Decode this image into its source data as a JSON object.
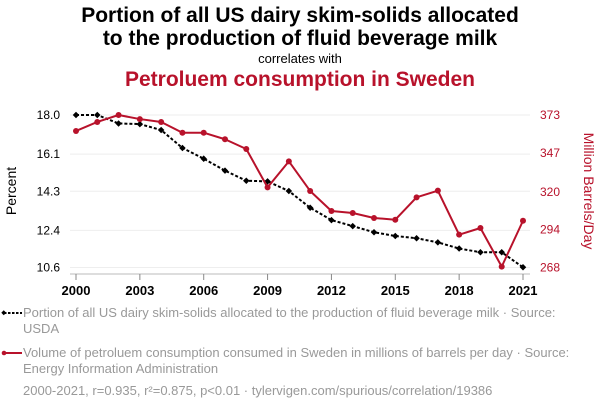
{
  "header": {
    "title_line1": "Portion of all US dairy skim-solids allocated",
    "title_line2": "to the production of fluid beverage milk",
    "correlates": "correlates with",
    "subtitle": "Petroluem consumption in Sweden"
  },
  "legend": {
    "series1": "Portion of all US dairy skim-solids allocated to the production of fluid beverage milk · Source: USDA",
    "series2": "Volume of petroluem consumption consumed in Sweden in millions of barrels per day · Source: Energy Information Administration"
  },
  "footer": "2000-2021, r=0.935, r²=0.875, p<0.01 · tylervigen.com/spurious/correlation/19386",
  "colors": {
    "series1": "#000000",
    "series2": "#b8122b",
    "grid": "#eeeeee"
  },
  "chart_data": {
    "type": "line",
    "title": "Portion of all US dairy skim-solids allocated to the production of fluid beverage milk correlates with Petroluem consumption in Sweden",
    "x": [
      2000,
      2001,
      2002,
      2003,
      2004,
      2005,
      2006,
      2007,
      2008,
      2009,
      2010,
      2011,
      2012,
      2013,
      2014,
      2015,
      2016,
      2017,
      2018,
      2019,
      2020,
      2021
    ],
    "xlabel": "",
    "x_ticks": [
      2000,
      2003,
      2006,
      2009,
      2012,
      2015,
      2018,
      2021
    ],
    "x_tick_labels": [
      "2000",
      "2003",
      "2006",
      "2009",
      "2012",
      "2015",
      "2018",
      "2021"
    ],
    "xlim": [
      2000,
      2021
    ],
    "grid": true,
    "legend_position": "bottom",
    "axes": {
      "left": {
        "label": "Percent",
        "ylim": [
          10.6,
          18.0
        ],
        "ticks": [
          18.0,
          16.1,
          14.3,
          12.4,
          10.6
        ],
        "tick_labels": [
          "18.0",
          "16.1",
          "14.3",
          "12.4",
          "10.6"
        ]
      },
      "right": {
        "label": "Million Barrels/Day",
        "ylim": [
          268,
          373
        ],
        "ticks": [
          373,
          347,
          320,
          294,
          268
        ],
        "tick_labels": [
          "373",
          "347",
          "320",
          "294",
          "268"
        ]
      }
    },
    "series": [
      {
        "name": "Portion of all US dairy skim-solids allocated to the production of fluid beverage milk",
        "axis": "left",
        "style": "dashed",
        "marker": "diamond",
        "values": [
          18.0,
          18.0,
          17.59,
          17.56,
          17.27,
          16.4,
          15.88,
          15.3,
          14.81,
          14.78,
          14.31,
          13.5,
          12.9,
          12.61,
          12.31,
          12.13,
          12.02,
          11.82,
          11.52,
          11.34,
          11.34,
          10.61
        ]
      },
      {
        "name": "Volume of petroluem consumption consumed in Sweden in millions of barrels per day",
        "axis": "right",
        "style": "solid",
        "marker": "circle",
        "values": [
          362.0,
          368.2,
          373.0,
          370.2,
          368.2,
          360.8,
          360.8,
          356.3,
          349.6,
          323.2,
          341.1,
          320.7,
          306.9,
          305.5,
          302.1,
          300.9,
          316.3,
          320.9,
          290.6,
          295.2,
          268.6,
          300.2
        ]
      }
    ]
  }
}
